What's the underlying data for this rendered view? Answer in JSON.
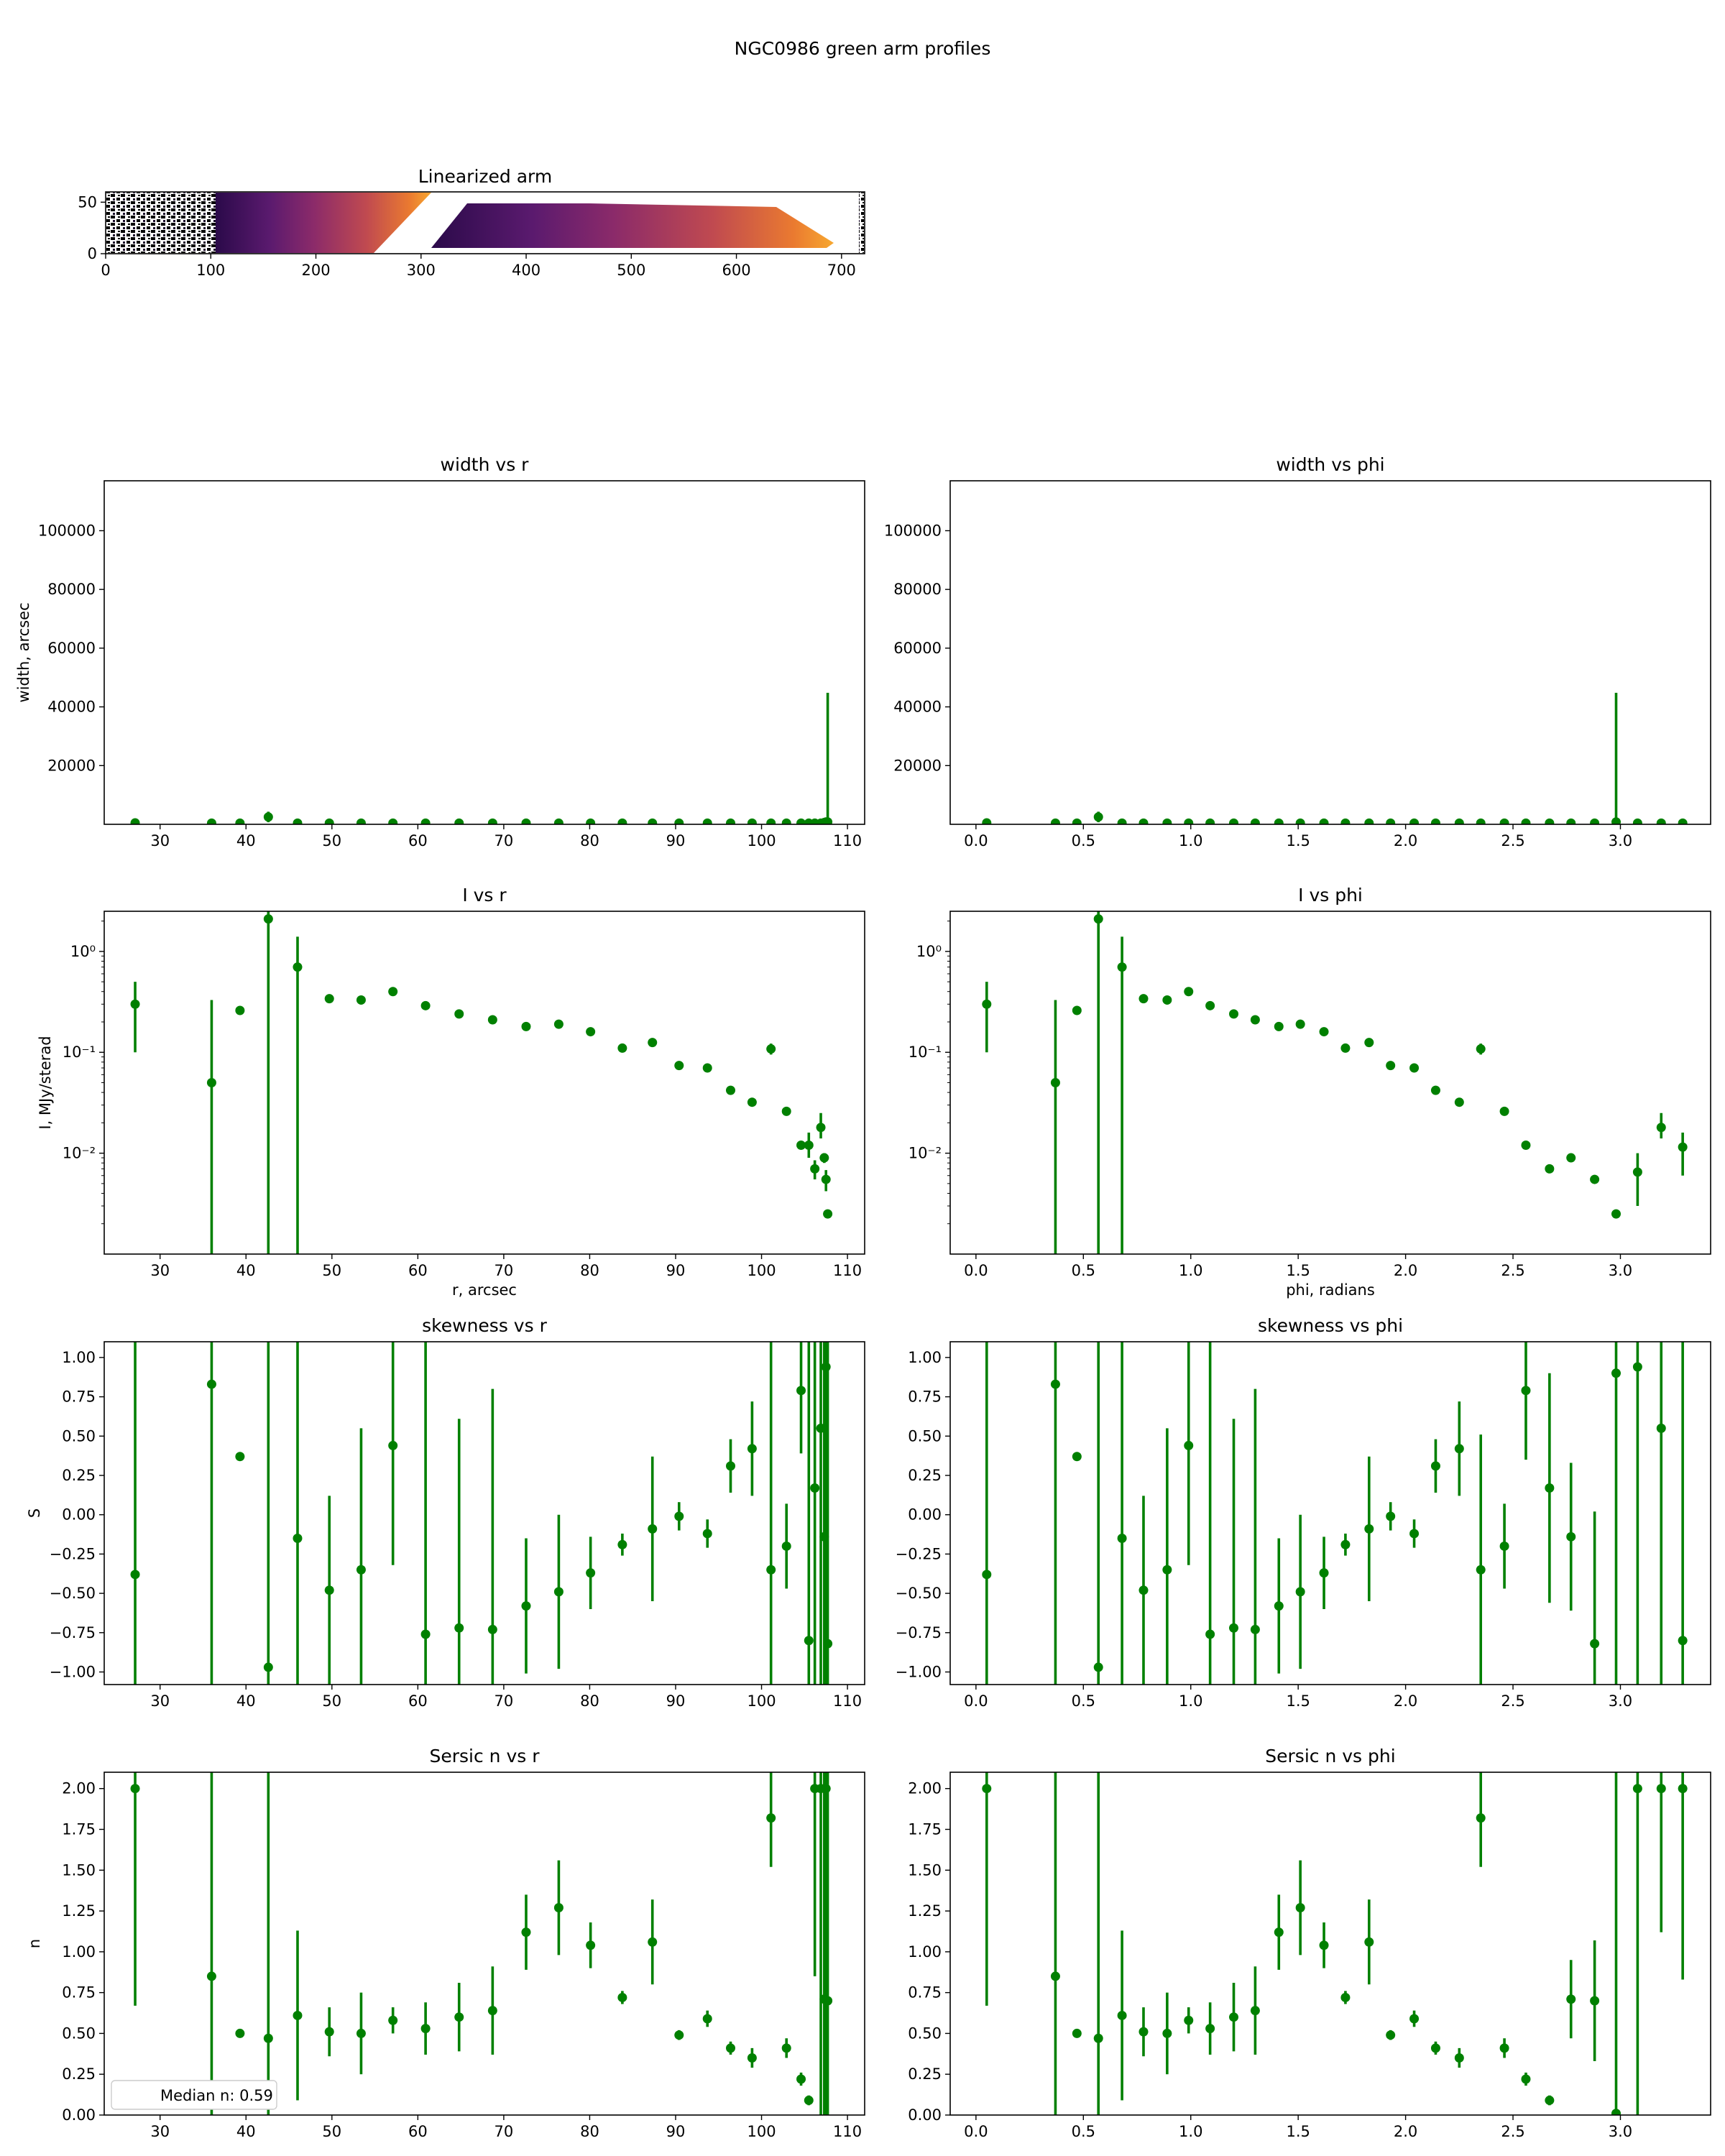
{
  "figure": {
    "suptitle": "NGC0986 green arm profiles",
    "colors": {
      "marker": "#008000",
      "frame": "#000000"
    }
  },
  "image_panel": {
    "title": "Linearized arm",
    "xticks": [
      "0",
      "100",
      "200",
      "300",
      "400",
      "500",
      "600",
      "700"
    ],
    "yticks": [
      "0",
      "50"
    ],
    "xlim": [
      0,
      722
    ],
    "ylim": [
      0,
      60
    ],
    "colormap": "inferno"
  },
  "chart_data": [
    {
      "id": "width_r",
      "type": "scatter",
      "title": "width vs r",
      "xlabel": "",
      "ylabel": "width, arcsec",
      "yscale": "linear",
      "xlim": [
        23.5,
        112
      ],
      "ylim": [
        0,
        117000
      ],
      "xticks": [
        30,
        40,
        50,
        60,
        70,
        80,
        90,
        100,
        110
      ],
      "yticks": [
        20000,
        40000,
        60000,
        80000,
        100000
      ],
      "x": [
        27.1,
        36.0,
        39.3,
        42.6,
        46.0,
        49.7,
        53.4,
        57.1,
        60.9,
        64.8,
        68.7,
        72.6,
        76.4,
        80.1,
        83.8,
        87.3,
        90.4,
        93.7,
        96.4,
        98.9,
        101.1,
        102.9,
        104.6,
        105.5,
        106.2,
        106.9,
        107.3,
        107.5,
        107.7
      ],
      "y": [
        500,
        400,
        400,
        2500,
        400,
        400,
        400,
        400,
        400,
        400,
        400,
        400,
        400,
        400,
        400,
        400,
        400,
        400,
        400,
        400,
        400,
        400,
        400,
        400,
        400,
        400,
        600,
        800,
        800
      ],
      "yerr": [
        300,
        200,
        200,
        1800,
        200,
        200,
        200,
        200,
        200,
        200,
        200,
        200,
        200,
        200,
        200,
        200,
        200,
        200,
        200,
        200,
        200,
        200,
        200,
        200,
        200,
        200,
        400,
        600,
        44000
      ]
    },
    {
      "id": "width_phi",
      "type": "scatter",
      "title": "width vs phi",
      "xlabel": "",
      "ylabel": "",
      "yscale": "linear",
      "xlim": [
        -0.12,
        3.42
      ],
      "ylim": [
        0,
        117000
      ],
      "xticks": [
        0.0,
        0.5,
        1.0,
        1.5,
        2.0,
        2.5,
        3.0
      ],
      "yticks": [
        20000,
        40000,
        60000,
        80000,
        100000
      ],
      "x": [
        0.05,
        0.37,
        0.47,
        0.57,
        0.68,
        0.78,
        0.89,
        0.99,
        1.09,
        1.2,
        1.3,
        1.41,
        1.51,
        1.62,
        1.72,
        1.83,
        1.93,
        2.04,
        2.14,
        2.25,
        2.35,
        2.46,
        2.56,
        2.67,
        2.77,
        2.88,
        2.98,
        3.08,
        3.19,
        3.29
      ],
      "y": [
        500,
        400,
        400,
        2500,
        400,
        400,
        400,
        400,
        400,
        400,
        400,
        400,
        400,
        400,
        400,
        400,
        400,
        400,
        400,
        400,
        400,
        400,
        400,
        400,
        400,
        400,
        800,
        400,
        400,
        400
      ],
      "yerr": [
        300,
        200,
        200,
        1800,
        200,
        200,
        200,
        200,
        200,
        200,
        200,
        200,
        200,
        200,
        200,
        200,
        200,
        200,
        200,
        200,
        200,
        200,
        200,
        200,
        200,
        200,
        44000,
        200,
        200,
        200
      ]
    },
    {
      "id": "I_r",
      "type": "scatter",
      "title": "I vs r",
      "xlabel": "r, arcsec",
      "ylabel": "I, MJy/sterad",
      "yscale": "log",
      "xlim": [
        23.5,
        112
      ],
      "ylim": [
        0.001,
        2.5
      ],
      "xticks": [
        30,
        40,
        50,
        60,
        70,
        80,
        90,
        100,
        110
      ],
      "yticks": [
        0.01,
        0.1,
        1
      ],
      "ytick_labels": [
        "10⁻²",
        "10⁻¹",
        "10⁰"
      ],
      "x": [
        27.1,
        36.0,
        39.3,
        42.6,
        46.0,
        49.7,
        53.4,
        57.1,
        60.9,
        64.8,
        68.7,
        72.6,
        76.4,
        80.1,
        83.8,
        87.3,
        90.4,
        93.7,
        96.4,
        98.9,
        101.1,
        102.9,
        104.6,
        105.5,
        106.2,
        106.9,
        107.3,
        107.5,
        107.7
      ],
      "y": [
        0.3,
        0.05,
        0.26,
        2.1,
        0.7,
        0.34,
        0.33,
        0.4,
        0.29,
        0.24,
        0.21,
        0.18,
        0.19,
        0.16,
        0.11,
        0.125,
        0.074,
        0.07,
        0.042,
        0.032,
        0.108,
        0.026,
        0.012,
        0.012,
        0.007,
        0.018,
        0.009,
        0.0055,
        0.0025
      ],
      "ylo": [
        0.1,
        0.0001,
        0.24,
        0.0001,
        0.0001,
        0.32,
        0.31,
        0.38,
        0.27,
        0.22,
        0.2,
        0.17,
        0.18,
        0.15,
        0.105,
        0.118,
        0.07,
        0.066,
        0.04,
        0.03,
        0.095,
        0.024,
        0.011,
        0.009,
        0.0055,
        0.014,
        0.008,
        0.0042,
        0.0023
      ],
      "yhi": [
        0.5,
        0.33,
        0.28,
        2.6,
        1.4,
        0.36,
        0.35,
        0.42,
        0.31,
        0.26,
        0.22,
        0.19,
        0.2,
        0.17,
        0.115,
        0.132,
        0.078,
        0.074,
        0.044,
        0.034,
        0.122,
        0.028,
        0.013,
        0.016,
        0.0085,
        0.025,
        0.01,
        0.0068,
        0.0027
      ]
    },
    {
      "id": "I_phi",
      "type": "scatter",
      "title": "I vs phi",
      "xlabel": "phi, radians",
      "ylabel": "",
      "yscale": "log",
      "xlim": [
        -0.12,
        3.42
      ],
      "ylim": [
        0.001,
        2.5
      ],
      "xticks": [
        0.0,
        0.5,
        1.0,
        1.5,
        2.0,
        2.5,
        3.0
      ],
      "yticks": [
        0.01,
        0.1,
        1
      ],
      "ytick_labels": [
        "10⁻²",
        "10⁻¹",
        "10⁰"
      ],
      "x": [
        0.05,
        0.37,
        0.47,
        0.57,
        0.68,
        0.78,
        0.89,
        0.99,
        1.09,
        1.2,
        1.3,
        1.41,
        1.51,
        1.62,
        1.72,
        1.83,
        1.93,
        2.04,
        2.14,
        2.25,
        2.35,
        2.46,
        2.56,
        2.67,
        2.77,
        2.88,
        2.98,
        3.08,
        3.19,
        3.29
      ],
      "y": [
        0.3,
        0.05,
        0.26,
        2.1,
        0.7,
        0.34,
        0.33,
        0.4,
        0.29,
        0.24,
        0.21,
        0.18,
        0.19,
        0.16,
        0.11,
        0.125,
        0.074,
        0.07,
        0.042,
        0.032,
        0.108,
        0.026,
        0.012,
        0.007,
        0.009,
        0.0055,
        0.0025,
        0.0065,
        0.018,
        0.0115
      ],
      "ylo": [
        0.1,
        0.0001,
        0.24,
        0.0001,
        0.0001,
        0.32,
        0.31,
        0.38,
        0.27,
        0.22,
        0.2,
        0.17,
        0.18,
        0.15,
        0.105,
        0.118,
        0.07,
        0.066,
        0.04,
        0.03,
        0.095,
        0.024,
        0.011,
        0.0065,
        0.0085,
        0.005,
        0.0024,
        0.003,
        0.014,
        0.006
      ],
      "yhi": [
        0.5,
        0.33,
        0.28,
        2.6,
        1.4,
        0.36,
        0.35,
        0.42,
        0.31,
        0.26,
        0.22,
        0.19,
        0.2,
        0.17,
        0.115,
        0.132,
        0.078,
        0.074,
        0.044,
        0.034,
        0.122,
        0.028,
        0.013,
        0.0075,
        0.0095,
        0.006,
        0.0026,
        0.01,
        0.025,
        0.016
      ]
    },
    {
      "id": "S_r",
      "type": "scatter",
      "title": "skewness vs r",
      "xlabel": "",
      "ylabel": "S",
      "yscale": "linear",
      "xlim": [
        23.5,
        112
      ],
      "ylim": [
        -1.08,
        1.1
      ],
      "xticks": [
        30,
        40,
        50,
        60,
        70,
        80,
        90,
        100,
        110
      ],
      "yticks": [
        -1.0,
        -0.75,
        -0.5,
        -0.25,
        0.0,
        0.25,
        0.5,
        0.75,
        1.0
      ],
      "ytick_labels": [
        "−1.00",
        "−0.75",
        "−0.50",
        "−0.25",
        "0.00",
        "0.25",
        "0.50",
        "0.75",
        "1.00"
      ],
      "x": [
        27.1,
        36.0,
        39.3,
        42.6,
        46.0,
        49.7,
        53.4,
        57.1,
        60.9,
        64.8,
        68.7,
        72.6,
        76.4,
        80.1,
        83.8,
        87.3,
        90.4,
        93.7,
        96.4,
        98.9,
        101.1,
        102.9,
        104.6,
        105.5,
        106.2,
        106.9,
        107.3,
        107.5,
        107.7
      ],
      "y": [
        -0.38,
        0.83,
        0.37,
        -0.97,
        -0.15,
        -0.48,
        -0.35,
        0.44,
        -0.76,
        -0.72,
        -0.73,
        -0.58,
        -0.49,
        -0.37,
        -0.19,
        -0.09,
        -0.01,
        -0.12,
        0.31,
        0.42,
        -0.35,
        -0.2,
        0.79,
        -0.8,
        0.17,
        0.55,
        -0.14,
        0.94,
        -0.82
      ],
      "yerr": [
        3,
        3,
        0.01,
        3,
        3,
        0.6,
        0.9,
        0.76,
        3,
        1.33,
        1.53,
        0.43,
        0.49,
        0.23,
        0.07,
        0.46,
        0.09,
        0.09,
        0.17,
        0.3,
        3,
        0.27,
        0.4,
        3,
        3,
        3,
        3,
        3,
        3
      ]
    },
    {
      "id": "S_phi",
      "type": "scatter",
      "title": "skewness vs phi",
      "xlabel": "",
      "ylabel": "",
      "yscale": "linear",
      "xlim": [
        -0.12,
        3.42
      ],
      "ylim": [
        -1.08,
        1.1
      ],
      "xticks": [
        0.0,
        0.5,
        1.0,
        1.5,
        2.0,
        2.5,
        3.0
      ],
      "yticks": [
        -1.0,
        -0.75,
        -0.5,
        -0.25,
        0.0,
        0.25,
        0.5,
        0.75,
        1.0
      ],
      "ytick_labels": [
        "−1.00",
        "−0.75",
        "−0.50",
        "−0.25",
        "0.00",
        "0.25",
        "0.50",
        "0.75",
        "1.00"
      ],
      "x": [
        0.05,
        0.37,
        0.47,
        0.57,
        0.68,
        0.78,
        0.89,
        0.99,
        1.09,
        1.2,
        1.3,
        1.41,
        1.51,
        1.62,
        1.72,
        1.83,
        1.93,
        2.04,
        2.14,
        2.25,
        2.35,
        2.46,
        2.56,
        2.67,
        2.77,
        2.88,
        2.98,
        3.08,
        3.19,
        3.29
      ],
      "y": [
        -0.38,
        0.83,
        0.37,
        -0.97,
        -0.15,
        -0.48,
        -0.35,
        0.44,
        -0.76,
        -0.72,
        -0.73,
        -0.58,
        -0.49,
        -0.37,
        -0.19,
        -0.09,
        -0.01,
        -0.12,
        0.31,
        0.42,
        -0.35,
        -0.2,
        0.79,
        0.17,
        -0.14,
        -0.82,
        0.9,
        0.94,
        0.55,
        -0.8
      ],
      "yerr": [
        3,
        3,
        0.01,
        3,
        3,
        0.6,
        0.9,
        0.76,
        3,
        1.33,
        1.53,
        0.43,
        0.49,
        0.23,
        0.07,
        0.46,
        0.09,
        0.09,
        0.17,
        0.3,
        0.86,
        0.27,
        0.44,
        0.73,
        0.47,
        0.84,
        3,
        3,
        3,
        3
      ]
    },
    {
      "id": "n_r",
      "type": "scatter",
      "title": "Sersic n vs r",
      "xlabel": "",
      "ylabel": "n",
      "yscale": "linear",
      "xlim": [
        23.5,
        112
      ],
      "ylim": [
        0,
        2.1
      ],
      "xticks": [
        30,
        40,
        50,
        60,
        70,
        80,
        90,
        100,
        110
      ],
      "yticks": [
        0.0,
        0.25,
        0.5,
        0.75,
        1.0,
        1.25,
        1.5,
        1.75,
        2.0
      ],
      "ytick_labels": [
        "0.00",
        "0.25",
        "0.50",
        "0.75",
        "1.00",
        "1.25",
        "1.50",
        "1.75",
        "2.00"
      ],
      "legend": {
        "text": "Median n: 0.59",
        "loc": "lower left"
      },
      "x": [
        27.1,
        36.0,
        39.3,
        42.6,
        46.0,
        49.7,
        53.4,
        57.1,
        60.9,
        64.8,
        68.7,
        72.6,
        76.4,
        80.1,
        83.8,
        87.3,
        90.4,
        93.7,
        96.4,
        98.9,
        101.1,
        102.9,
        104.6,
        105.5,
        106.2,
        106.9,
        107.3,
        107.5,
        107.7
      ],
      "y": [
        2.0,
        0.85,
        0.5,
        0.47,
        0.61,
        0.51,
        0.5,
        0.58,
        0.53,
        0.6,
        0.64,
        1.12,
        1.27,
        1.04,
        0.72,
        1.06,
        0.49,
        0.59,
        0.41,
        0.35,
        1.82,
        0.41,
        0.22,
        0.09,
        2.0,
        2.0,
        0.71,
        2.0,
        0.7
      ],
      "yerr": [
        1.33,
        3,
        0.01,
        3,
        0.52,
        0.15,
        0.25,
        0.08,
        0.16,
        0.21,
        0.27,
        0.23,
        0.29,
        0.14,
        0.04,
        0.26,
        0.03,
        0.05,
        0.04,
        0.06,
        0.3,
        0.06,
        0.04,
        0.03,
        1.15,
        3,
        3,
        3,
        3
      ]
    },
    {
      "id": "n_phi",
      "type": "scatter",
      "title": "Sersic n vs phi",
      "xlabel": "",
      "ylabel": "",
      "yscale": "linear",
      "xlim": [
        -0.12,
        3.42
      ],
      "ylim": [
        0,
        2.1
      ],
      "xticks": [
        0.0,
        0.5,
        1.0,
        1.5,
        2.0,
        2.5,
        3.0
      ],
      "yticks": [
        0.0,
        0.25,
        0.5,
        0.75,
        1.0,
        1.25,
        1.5,
        1.75,
        2.0
      ],
      "ytick_labels": [
        "0.00",
        "0.25",
        "0.50",
        "0.75",
        "1.00",
        "1.25",
        "1.50",
        "1.75",
        "2.00"
      ],
      "x": [
        0.05,
        0.37,
        0.47,
        0.57,
        0.68,
        0.78,
        0.89,
        0.99,
        1.09,
        1.2,
        1.3,
        1.41,
        1.51,
        1.62,
        1.72,
        1.83,
        1.93,
        2.04,
        2.14,
        2.25,
        2.35,
        2.46,
        2.56,
        2.67,
        2.77,
        2.88,
        2.98,
        3.08,
        3.19,
        3.29
      ],
      "y": [
        2.0,
        0.85,
        0.5,
        0.47,
        0.61,
        0.51,
        0.5,
        0.58,
        0.53,
        0.6,
        0.64,
        1.12,
        1.27,
        1.04,
        0.72,
        1.06,
        0.49,
        0.59,
        0.41,
        0.35,
        1.82,
        0.41,
        0.22,
        0.09,
        0.71,
        0.7,
        0.01,
        2.0,
        2.0,
        2.0
      ],
      "yerr": [
        1.33,
        3,
        0.01,
        3,
        0.52,
        0.15,
        0.25,
        0.08,
        0.16,
        0.21,
        0.27,
        0.23,
        0.29,
        0.14,
        0.04,
        0.26,
        0.03,
        0.05,
        0.04,
        0.06,
        0.3,
        0.06,
        0.04,
        0.03,
        0.24,
        0.37,
        3,
        3,
        0.88,
        1.17
      ]
    }
  ]
}
